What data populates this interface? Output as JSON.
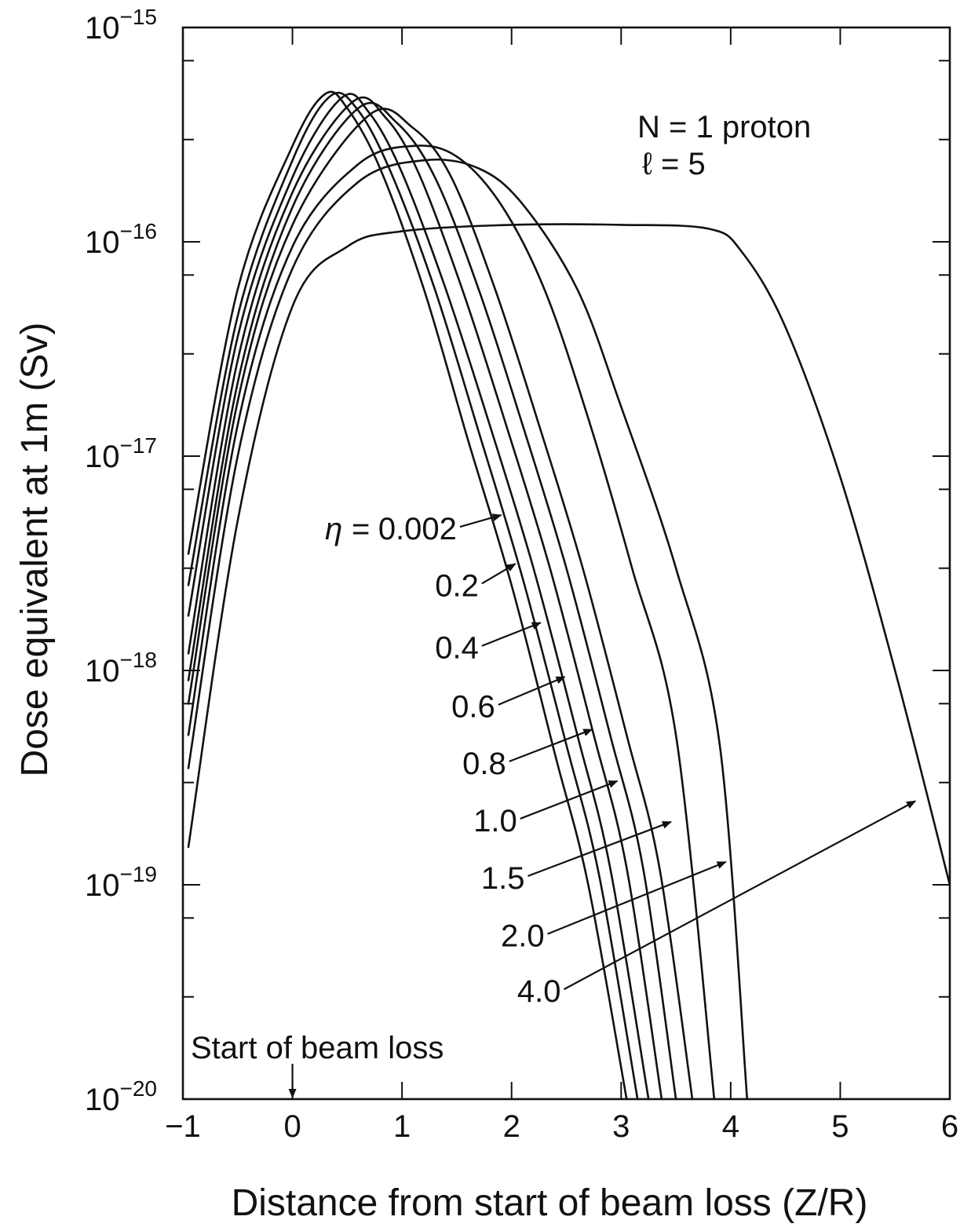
{
  "chart_data": {
    "type": "line",
    "title": "",
    "xlabel": "Distance from start of beam loss (Z/R)",
    "ylabel": "Dose equivalent at 1m (Sv)",
    "xlim": [
      -1,
      6
    ],
    "ylim": [
      1e-20,
      1e-15
    ],
    "y_scale": "log",
    "grid": false,
    "x_ticks": [
      -1,
      0,
      1,
      2,
      3,
      4,
      5,
      6
    ],
    "x_tick_labels": [
      "−1",
      "0",
      "1",
      "2",
      "3",
      "4",
      "5",
      "6"
    ],
    "y_ticks": [
      1e-20,
      1e-19,
      1e-18,
      1e-17,
      1e-16,
      1e-15
    ],
    "y_tick_exponents": [
      "−20",
      "−19",
      "−18",
      "−17",
      "−16",
      "−15"
    ],
    "y_tick_base": "10",
    "annotations": {
      "params_line1": "N = 1 proton",
      "params_line2": "ℓ = 5",
      "eta_prefix": "η = ",
      "start_label": "Start of beam loss",
      "start_x": 0
    },
    "series": [
      {
        "label": "0.002",
        "arrow_target": [
          1.92,
          5.4e-18
        ],
        "points": [
          [
            -0.95,
            3.5e-18
          ],
          [
            -0.5,
            6e-17
          ],
          [
            0,
            2.8e-16
          ],
          [
            0.3,
            4.9e-16
          ],
          [
            0.5,
            4.2e-16
          ],
          [
            0.8,
            2.2e-16
          ],
          [
            1.2,
            6e-17
          ],
          [
            1.6,
            1.2e-17
          ],
          [
            2.0,
            2.5e-18
          ],
          [
            2.4,
            4e-19
          ],
          [
            2.7,
            1e-19
          ],
          [
            3.05,
            1e-20
          ]
        ]
      },
      {
        "label": "0.2",
        "arrow_target": [
          2.05,
          3.2e-18
        ],
        "points": [
          [
            -0.95,
            2.5e-18
          ],
          [
            -0.5,
            4.5e-17
          ],
          [
            0,
            2.4e-16
          ],
          [
            0.35,
            4.8e-16
          ],
          [
            0.6,
            4.1e-16
          ],
          [
            0.9,
            2.1e-16
          ],
          [
            1.3,
            6e-17
          ],
          [
            1.7,
            1.3e-17
          ],
          [
            2.1,
            2.7e-18
          ],
          [
            2.5,
            4.5e-19
          ],
          [
            2.8,
            1.1e-19
          ],
          [
            3.15,
            1e-20
          ]
        ]
      },
      {
        "label": "0.4",
        "arrow_target": [
          2.28,
          1.7e-18
        ],
        "points": [
          [
            -0.95,
            1.8e-18
          ],
          [
            -0.5,
            3.6e-17
          ],
          [
            0,
            2e-16
          ],
          [
            0.45,
            4.7e-16
          ],
          [
            0.7,
            4e-16
          ],
          [
            1.0,
            2.1e-16
          ],
          [
            1.4,
            6e-17
          ],
          [
            1.8,
            1.4e-17
          ],
          [
            2.2,
            3e-18
          ],
          [
            2.6,
            5e-19
          ],
          [
            2.9,
            1.2e-19
          ],
          [
            3.25,
            1e-20
          ]
        ]
      },
      {
        "label": "0.6",
        "arrow_target": [
          2.5,
          9.5e-19
        ],
        "points": [
          [
            -0.95,
            1.2e-18
          ],
          [
            -0.5,
            2.8e-17
          ],
          [
            0,
            1.7e-16
          ],
          [
            0.55,
            4.5e-16
          ],
          [
            0.85,
            3.8e-16
          ],
          [
            1.15,
            2.1e-16
          ],
          [
            1.55,
            6e-17
          ],
          [
            1.95,
            1.4e-17
          ],
          [
            2.35,
            3e-18
          ],
          [
            2.75,
            5e-19
          ],
          [
            3.05,
            1.2e-19
          ],
          [
            3.37,
            1e-20
          ]
        ]
      },
      {
        "label": "0.8",
        "arrow_target": [
          2.75,
          5.4e-19
        ],
        "points": [
          [
            -0.95,
            9e-19
          ],
          [
            -0.5,
            2.2e-17
          ],
          [
            0,
            1.45e-16
          ],
          [
            0.6,
            4.2e-16
          ],
          [
            0.95,
            3.6e-16
          ],
          [
            1.3,
            2e-16
          ],
          [
            1.7,
            6e-17
          ],
          [
            2.1,
            1.4e-17
          ],
          [
            2.5,
            3e-18
          ],
          [
            2.9,
            5e-19
          ],
          [
            3.2,
            1.2e-19
          ],
          [
            3.5,
            1e-20
          ]
        ]
      },
      {
        "label": "1.0",
        "arrow_target": [
          2.98,
          3.1e-19
        ],
        "points": [
          [
            -0.95,
            7e-19
          ],
          [
            -0.5,
            1.8e-17
          ],
          [
            0,
            1.2e-16
          ],
          [
            0.7,
            3.9e-16
          ],
          [
            1.1,
            3.4e-16
          ],
          [
            1.45,
            2e-16
          ],
          [
            1.85,
            6e-17
          ],
          [
            2.25,
            1.4e-17
          ],
          [
            2.65,
            3e-18
          ],
          [
            3.05,
            5e-19
          ],
          [
            3.35,
            1.2e-19
          ],
          [
            3.65,
            1e-20
          ]
        ]
      },
      {
        "label": "1.5",
        "arrow_target": [
          3.47,
          2e-19
        ],
        "points": [
          [
            -0.95,
            5e-19
          ],
          [
            -0.5,
            1.4e-17
          ],
          [
            0,
            9.5e-17
          ],
          [
            0.6,
            2.3e-16
          ],
          [
            1.1,
            2.8e-16
          ],
          [
            1.5,
            2.5e-16
          ],
          [
            1.9,
            1.5e-16
          ],
          [
            2.3,
            6e-17
          ],
          [
            2.7,
            1.5e-17
          ],
          [
            3.1,
            3e-18
          ],
          [
            3.5,
            5e-19
          ],
          [
            3.85,
            1e-20
          ]
        ]
      },
      {
        "label": "2.0",
        "arrow_target": [
          3.97,
          1.3e-19
        ],
        "points": [
          [
            -0.95,
            3.5e-19
          ],
          [
            -0.5,
            1e-17
          ],
          [
            0,
            7.5e-17
          ],
          [
            0.6,
            1.9e-16
          ],
          [
            1.2,
            2.4e-16
          ],
          [
            1.7,
            2.2e-16
          ],
          [
            2.1,
            1.5e-16
          ],
          [
            2.6,
            6e-17
          ],
          [
            3.0,
            1.7e-17
          ],
          [
            3.5,
            3e-18
          ],
          [
            3.9,
            4.5e-19
          ],
          [
            4.15,
            1e-20
          ]
        ]
      },
      {
        "label": "4.0",
        "arrow_target": [
          5.7,
          2.5e-19
        ],
        "points": [
          [
            -0.95,
            1.5e-19
          ],
          [
            -0.5,
            5e-18
          ],
          [
            0,
            5e-17
          ],
          [
            0.5,
            9.5e-17
          ],
          [
            1.0,
            1.12e-16
          ],
          [
            2,
            1.2e-16
          ],
          [
            3,
            1.2e-16
          ],
          [
            3.8,
            1.15e-16
          ],
          [
            4.1,
            9e-17
          ],
          [
            4.5,
            4e-17
          ],
          [
            5.0,
            8e-18
          ],
          [
            5.5,
            1e-18
          ],
          [
            6.0,
            1e-19
          ]
        ]
      }
    ],
    "eta_label_positions": [
      {
        "x": 1.5,
        "y": 4.6e-18
      },
      {
        "x": 1.7,
        "y": 2.5e-18
      },
      {
        "x": 1.7,
        "y": 1.28e-18
      },
      {
        "x": 1.85,
        "y": 6.8e-19
      },
      {
        "x": 1.95,
        "y": 3.7e-19
      },
      {
        "x": 2.05,
        "y": 2e-19
      },
      {
        "x": 2.12,
        "y": 1.08e-19
      },
      {
        "x": 2.3,
        "y": 5.8e-20
      },
      {
        "x": 2.45,
        "y": 3.2e-20
      }
    ]
  }
}
